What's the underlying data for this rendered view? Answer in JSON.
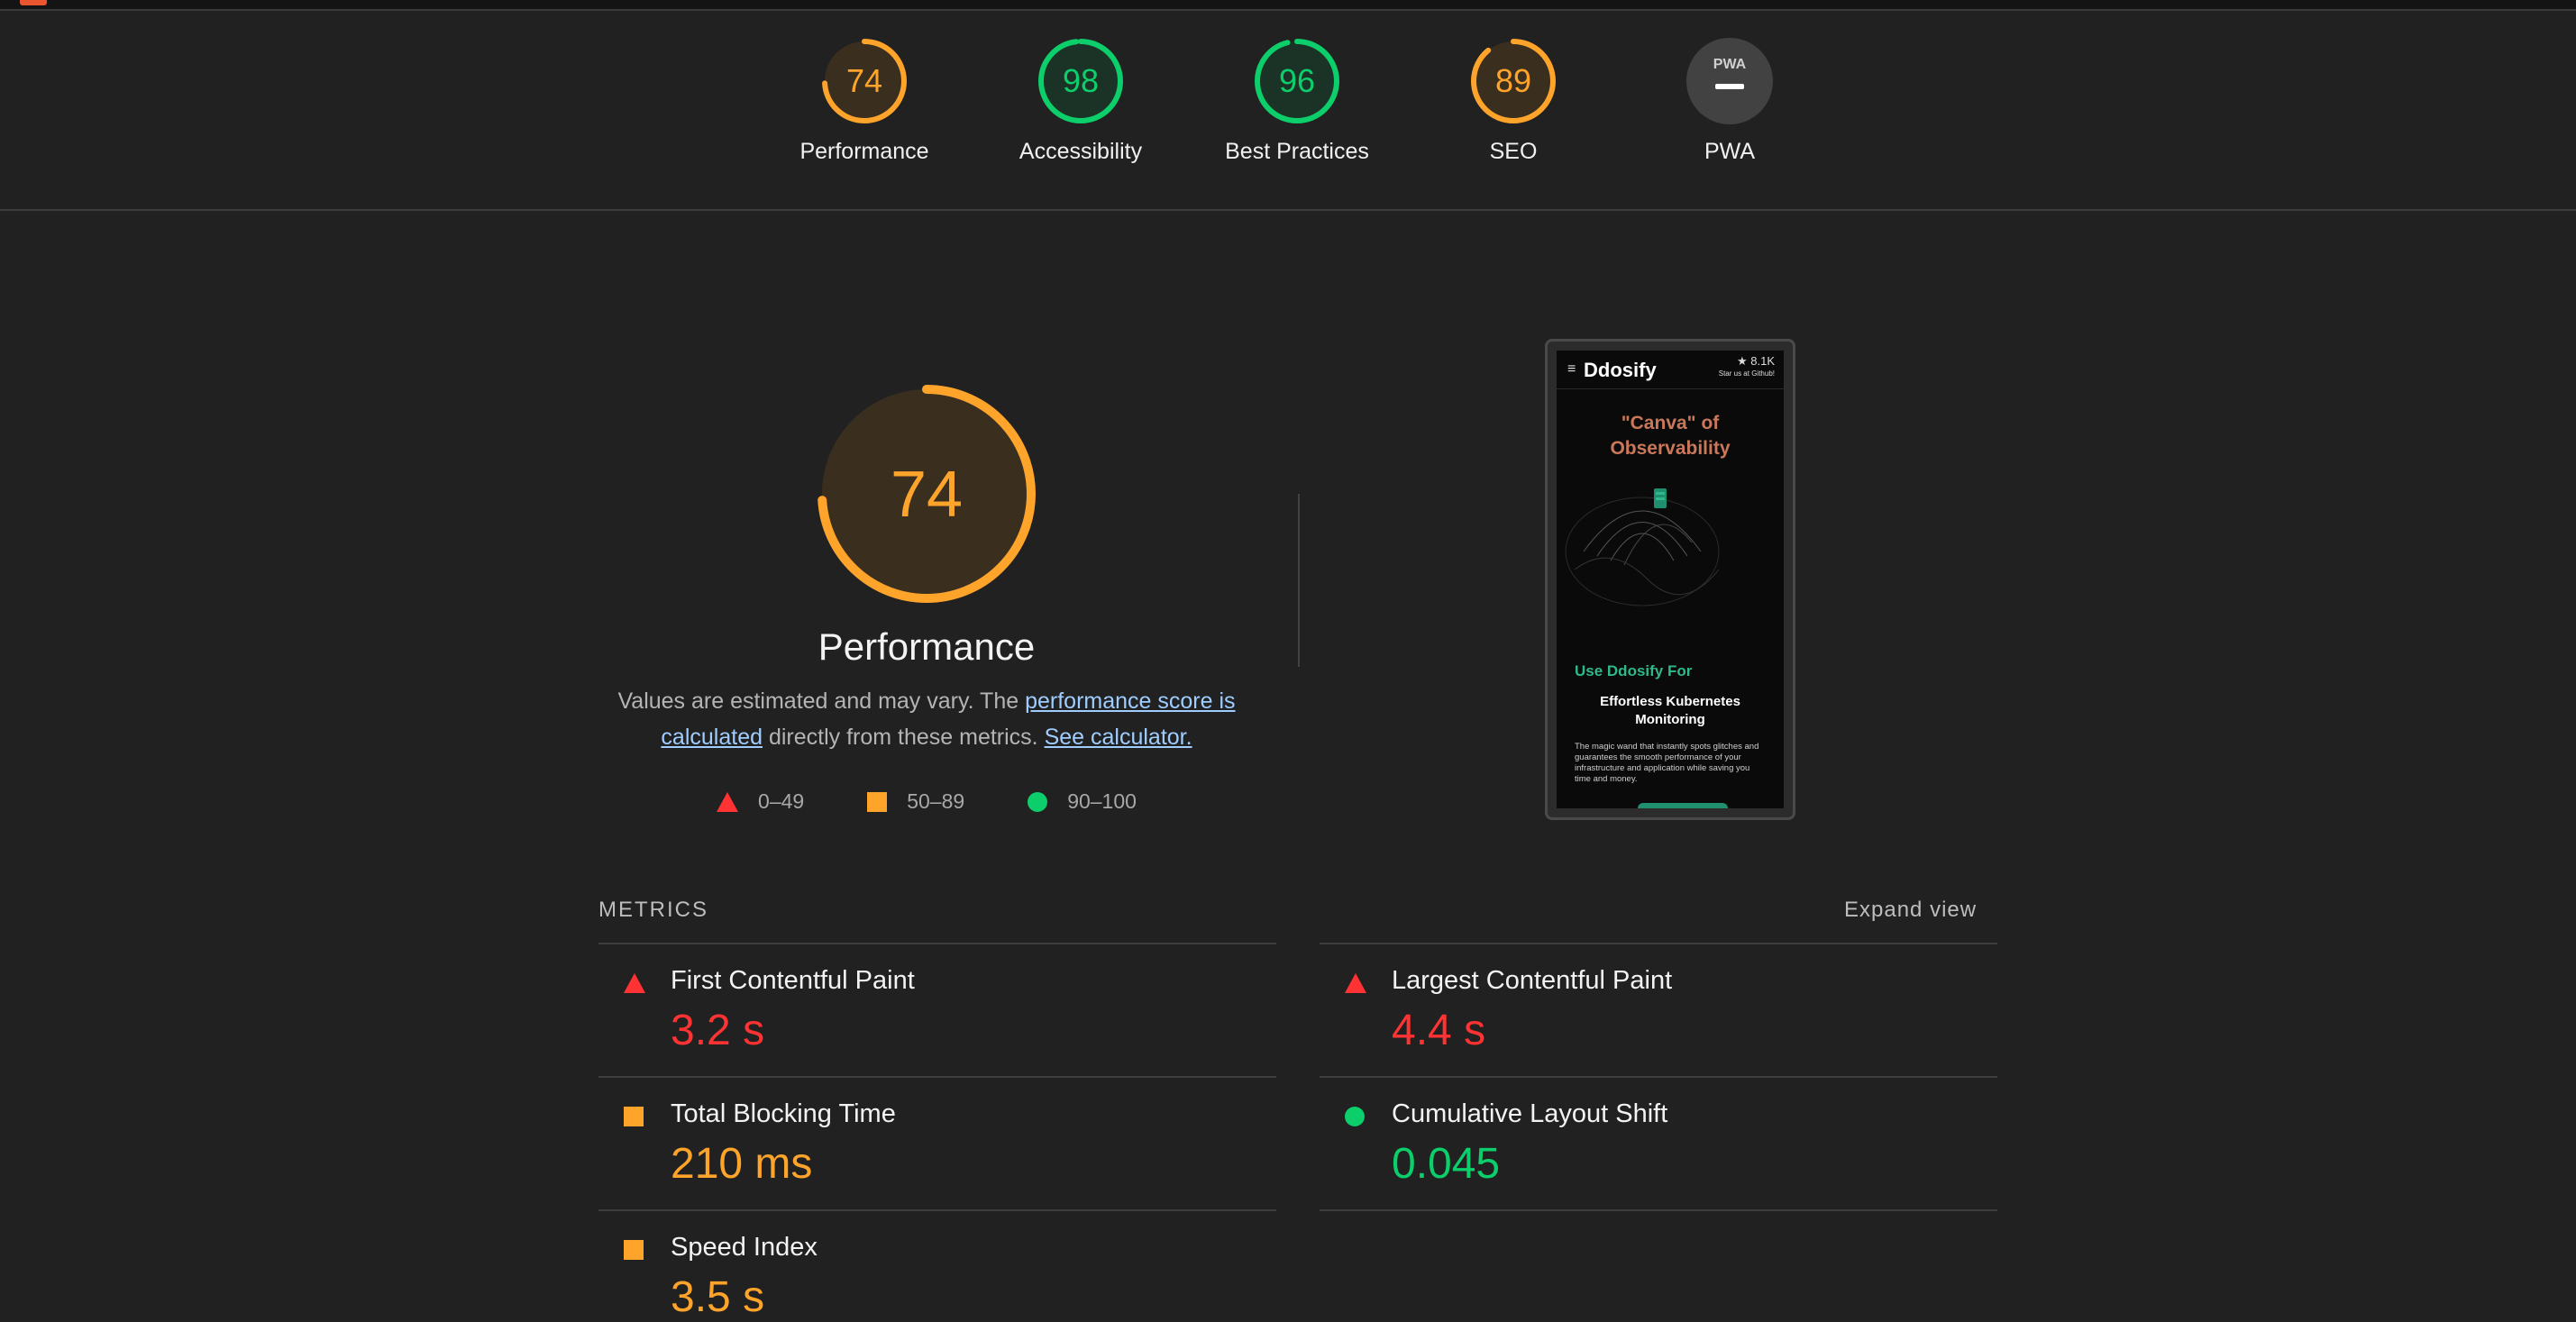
{
  "summary": {
    "categories": [
      {
        "label": "Performance",
        "score": "74",
        "level": "average"
      },
      {
        "label": "Accessibility",
        "score": "98",
        "level": "pass"
      },
      {
        "label": "Best Practices",
        "score": "96",
        "level": "pass"
      },
      {
        "label": "SEO",
        "score": "89",
        "level": "average"
      },
      {
        "label": "PWA",
        "score": "",
        "badge": "PWA",
        "level": "na"
      }
    ]
  },
  "performance": {
    "score": "74",
    "title": "Performance",
    "desc_prefix": "Values are estimated and may vary. The ",
    "link_score": "performance score is calculated",
    "desc_middle": " directly from these metrics. ",
    "link_calc": "See calculator.",
    "legend": [
      {
        "range": "0–49",
        "icon": "triangle-icon"
      },
      {
        "range": "50–89",
        "icon": "square-icon"
      },
      {
        "range": "90–100",
        "icon": "circle-icon"
      }
    ]
  },
  "screenshot": {
    "logo": "Ddosify",
    "github_star": "★ 8.1K",
    "github_caption": "Star us at Github!",
    "hero_title": "\"Canva\" of Observability",
    "use_for": "Use Ddosify For",
    "sub_title": "Effortless Kubernetes Monitoring",
    "body": "The magic wand that instantly spots glitches and guarantees the smooth performance of your infrastructure and application while saving you time and money."
  },
  "metrics": {
    "heading": "METRICS",
    "expand": "Expand view",
    "items": [
      {
        "name": "First Contentful Paint",
        "value": "3.2 s",
        "level": "fail"
      },
      {
        "name": "Largest Contentful Paint",
        "value": "4.4 s",
        "level": "fail"
      },
      {
        "name": "Total Blocking Time",
        "value": "210 ms",
        "level": "average"
      },
      {
        "name": "Cumulative Layout Shift",
        "value": "0.045",
        "level": "pass"
      },
      {
        "name": "Speed Index",
        "value": "3.5 s",
        "level": "average"
      }
    ]
  },
  "colors": {
    "fail": "#ff3333",
    "average": "#ffa42b",
    "pass": "#0cce6b",
    "background": "#212121",
    "link": "#9fcdff"
  }
}
